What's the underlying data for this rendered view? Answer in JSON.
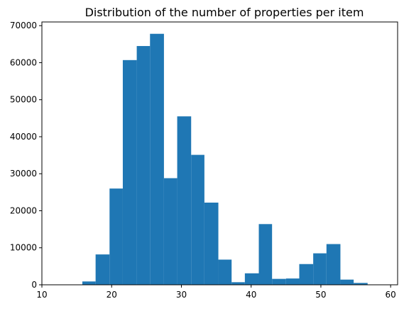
{
  "chart_data": {
    "type": "bar",
    "title": "Distribution of the number of properties per item",
    "xlabel": "",
    "ylabel": "",
    "bar_color": "#1f77b4",
    "xlim": [
      10,
      61
    ],
    "ylim": [
      0,
      71000
    ],
    "x_ticks": [
      10,
      20,
      30,
      40,
      50,
      60
    ],
    "y_ticks": [
      0,
      10000,
      20000,
      30000,
      40000,
      50000,
      60000,
      70000
    ],
    "x_tick_labels": [
      "10",
      "20",
      "30",
      "40",
      "50",
      "60"
    ],
    "y_tick_labels": [
      "0",
      "10000",
      "20000",
      "30000",
      "40000",
      "50000",
      "60000",
      "70000"
    ],
    "bins": [
      {
        "start": 15.8,
        "end": 17.7,
        "value": 900
      },
      {
        "start": 17.7,
        "end": 19.7,
        "value": 8200
      },
      {
        "start": 19.7,
        "end": 21.6,
        "value": 26000
      },
      {
        "start": 21.6,
        "end": 23.6,
        "value": 60700
      },
      {
        "start": 23.6,
        "end": 25.5,
        "value": 64500
      },
      {
        "start": 25.5,
        "end": 27.5,
        "value": 67800
      },
      {
        "start": 27.5,
        "end": 29.4,
        "value": 28800
      },
      {
        "start": 29.4,
        "end": 31.4,
        "value": 45500
      },
      {
        "start": 31.4,
        "end": 33.3,
        "value": 35100
      },
      {
        "start": 33.3,
        "end": 35.3,
        "value": 22200
      },
      {
        "start": 35.3,
        "end": 37.2,
        "value": 6800
      },
      {
        "start": 37.2,
        "end": 39.1,
        "value": 700
      },
      {
        "start": 39.1,
        "end": 41.1,
        "value": 3100
      },
      {
        "start": 41.1,
        "end": 43.0,
        "value": 16400
      },
      {
        "start": 43.0,
        "end": 45.0,
        "value": 1600
      },
      {
        "start": 45.0,
        "end": 46.9,
        "value": 1700
      },
      {
        "start": 46.9,
        "end": 48.9,
        "value": 5600
      },
      {
        "start": 48.9,
        "end": 50.8,
        "value": 8500
      },
      {
        "start": 50.8,
        "end": 52.8,
        "value": 11000
      },
      {
        "start": 52.8,
        "end": 54.7,
        "value": 1400
      },
      {
        "start": 54.7,
        "end": 56.7,
        "value": 500
      }
    ],
    "grid": false,
    "legend": "none"
  }
}
